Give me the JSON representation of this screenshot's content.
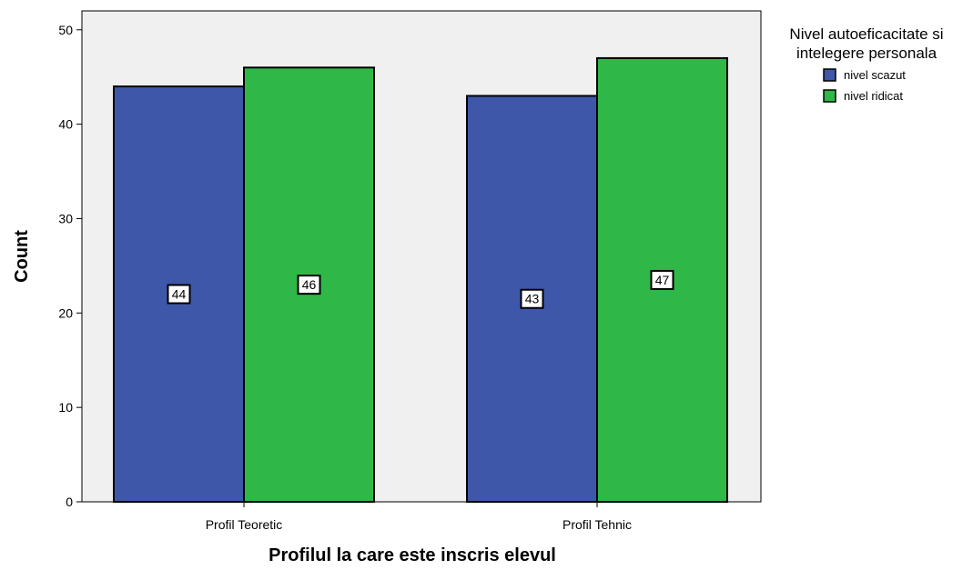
{
  "chart_data": {
    "type": "bar",
    "categories": [
      "Profil Teoretic",
      "Profil Tehnic"
    ],
    "series": [
      {
        "name": "nivel scazut",
        "values": [
          44,
          43
        ],
        "color": "#3f57a9"
      },
      {
        "name": "nivel ridicat",
        "values": [
          46,
          47
        ],
        "color": "#2fb847"
      }
    ],
    "xlabel": "Profilul la care este inscris elevul",
    "ylabel": "Count",
    "ylim": [
      0,
      52
    ],
    "yticks": [
      0,
      10,
      20,
      30,
      40,
      50
    ],
    "legend": {
      "title_lines": [
        "Nivel autoeficacitate si",
        "intelegere personala"
      ],
      "placement": "top-right, outside plot"
    },
    "data_labels": true,
    "grid": false,
    "plot_background": "#f0f0f0"
  }
}
